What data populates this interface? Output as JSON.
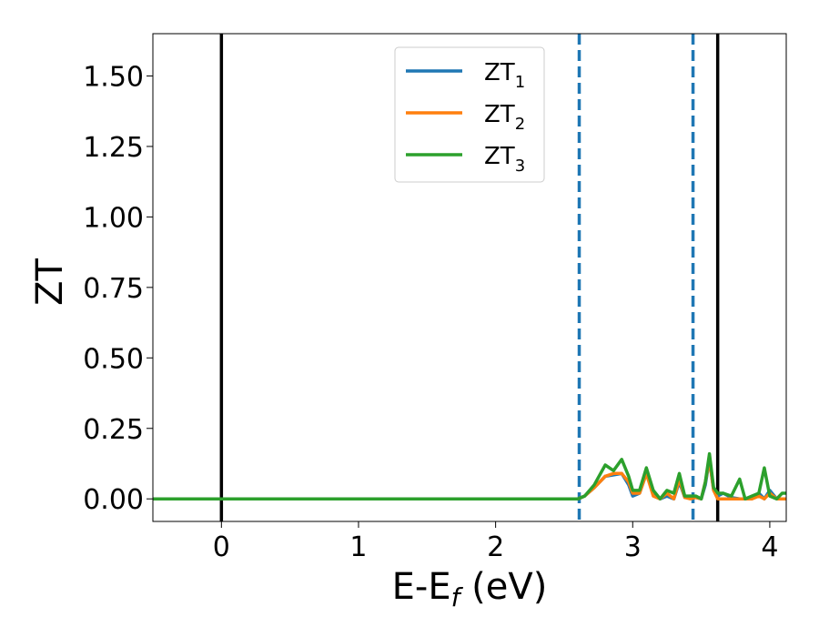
{
  "chart_data": {
    "type": "line",
    "xlabel_main": "E-E",
    "xlabel_sub": "f",
    "xlabel_unit": " (eV)",
    "ylabel": "ZT",
    "xlim": [
      -0.5,
      4.12
    ],
    "ylim": [
      -0.08,
      1.65
    ],
    "xticks": [
      0,
      1,
      2,
      3,
      4
    ],
    "yticks": [
      "0.00",
      "0.25",
      "0.50",
      "0.75",
      "1.00",
      "1.25",
      "1.50"
    ],
    "grid": false,
    "legend_position": "top-center",
    "vlines_solid": [
      0.0,
      3.62
    ],
    "vlines_dashed": [
      2.61,
      3.44
    ],
    "series": [
      {
        "name_main": "ZT",
        "name_sub": "1",
        "color": "#1f77b4",
        "x": [
          -0.5,
          2.0,
          2.6,
          2.65,
          2.72,
          2.8,
          2.86,
          2.92,
          2.97,
          3.0,
          3.05,
          3.1,
          3.15,
          3.2,
          3.25,
          3.3,
          3.34,
          3.38,
          3.42,
          3.46,
          3.5,
          3.53,
          3.56,
          3.59,
          3.62,
          3.66,
          3.72,
          3.78,
          3.82,
          3.87,
          3.92,
          3.96,
          4.0,
          4.05,
          4.09,
          4.12
        ],
        "y": [
          0.0,
          0.0,
          0.0,
          0.01,
          0.04,
          0.08,
          0.085,
          0.09,
          0.05,
          0.01,
          0.02,
          0.09,
          0.02,
          0.0,
          0.01,
          0.0,
          0.06,
          0.005,
          0.01,
          0.005,
          0.0,
          0.05,
          0.14,
          0.03,
          0.01,
          0.02,
          0.005,
          0.0,
          0.0,
          0.0,
          0.02,
          0.0,
          0.03,
          0.0,
          0.0,
          0.0
        ]
      },
      {
        "name_main": "ZT",
        "name_sub": "2",
        "color": "#ff7f0e",
        "x": [
          -0.5,
          2.0,
          2.6,
          2.65,
          2.72,
          2.8,
          2.86,
          2.92,
          2.97,
          3.0,
          3.05,
          3.1,
          3.15,
          3.2,
          3.25,
          3.3,
          3.34,
          3.38,
          3.42,
          3.46,
          3.5,
          3.53,
          3.56,
          3.59,
          3.62,
          3.66,
          3.72,
          3.78,
          3.82,
          3.87,
          3.92,
          3.96,
          4.0,
          4.05,
          4.09,
          4.12
        ],
        "y": [
          0.0,
          0.0,
          0.0,
          0.01,
          0.04,
          0.08,
          0.09,
          0.09,
          0.06,
          0.02,
          0.02,
          0.09,
          0.01,
          0.0,
          0.02,
          0.0,
          0.07,
          0.005,
          0.0,
          0.005,
          0.0,
          0.06,
          0.14,
          0.03,
          0.0,
          0.0,
          0.0,
          0.0,
          0.0,
          0.0,
          0.01,
          0.0,
          0.02,
          0.0,
          0.0,
          0.0
        ]
      },
      {
        "name_main": "ZT",
        "name_sub": "3",
        "color": "#2ca02c",
        "x": [
          -0.5,
          2.0,
          2.6,
          2.65,
          2.72,
          2.8,
          2.86,
          2.92,
          2.97,
          3.0,
          3.05,
          3.1,
          3.15,
          3.2,
          3.25,
          3.3,
          3.34,
          3.38,
          3.42,
          3.46,
          3.5,
          3.53,
          3.56,
          3.59,
          3.62,
          3.66,
          3.72,
          3.78,
          3.82,
          3.87,
          3.92,
          3.96,
          4.0,
          4.05,
          4.09,
          4.12
        ],
        "y": [
          0.0,
          0.0,
          0.0,
          0.01,
          0.05,
          0.12,
          0.1,
          0.14,
          0.08,
          0.03,
          0.03,
          0.11,
          0.03,
          0.0,
          0.03,
          0.02,
          0.09,
          0.01,
          0.01,
          0.01,
          0.0,
          0.06,
          0.16,
          0.04,
          0.02,
          0.02,
          0.01,
          0.07,
          0.0,
          0.01,
          0.02,
          0.11,
          0.01,
          0.0,
          0.02,
          0.02
        ]
      }
    ]
  }
}
